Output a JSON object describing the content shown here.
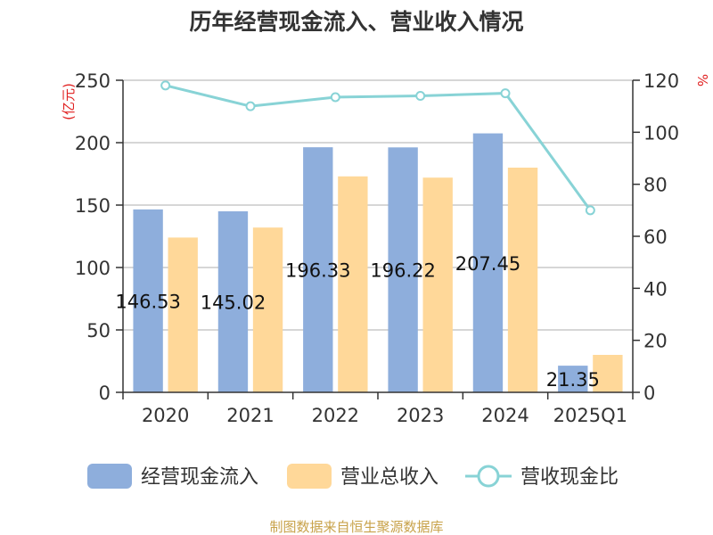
{
  "chart_data": {
    "type": "bar",
    "title": "历年经营现金流入、营业收入情况",
    "categories": [
      "2020",
      "2021",
      "2022",
      "2023",
      "2024",
      "2025Q1"
    ],
    "y_left": {
      "unit": "(亿元)",
      "min": 0,
      "max": 250,
      "ticks": [
        "0",
        "50",
        "100",
        "150",
        "200",
        "250"
      ]
    },
    "y_right": {
      "unit": "%",
      "min": 0,
      "max": 120,
      "ticks": [
        "0",
        "20",
        "40",
        "60",
        "80",
        "100",
        "120"
      ]
    },
    "series": [
      {
        "name": "经营现金流入",
        "type": "bar",
        "axis": "left",
        "color": "#8eaedc",
        "values": [
          146.53,
          145.02,
          196.33,
          196.22,
          207.45,
          21.35
        ],
        "labels": [
          "146.53",
          "145.02",
          "196.33",
          "196.22",
          "207.45",
          "21.35"
        ]
      },
      {
        "name": "营业总收入",
        "type": "bar",
        "axis": "left",
        "color": "#ffd899",
        "values": [
          124,
          132,
          173,
          172,
          180,
          30
        ]
      },
      {
        "name": "营收现金比",
        "type": "line",
        "axis": "right",
        "color": "#88d3d6",
        "values": [
          118,
          110,
          113.5,
          114,
          115,
          70
        ]
      }
    ],
    "grid": true,
    "legend_position": "bottom"
  },
  "source": "制图数据来自恒生聚源数据库"
}
